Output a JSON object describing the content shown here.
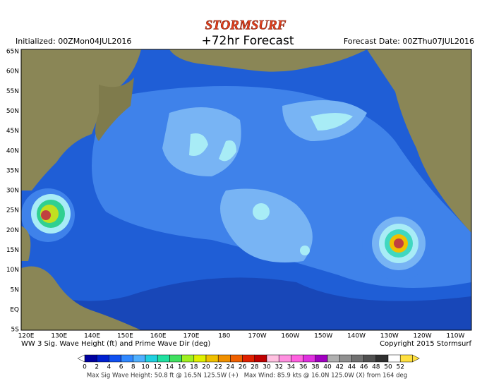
{
  "header": {
    "logo": "STORMSURF",
    "title": "+72hr Forecast",
    "initialized": "Initialized: 00ZMon04JUL2016",
    "forecast_date": "Forecast Date: 00ZThu07JUL2016"
  },
  "map": {
    "lat_labels": [
      "65N",
      "60N",
      "55N",
      "50N",
      "45N",
      "40N",
      "35N",
      "30N",
      "25N",
      "20N",
      "15N",
      "10N",
      "5N",
      "EQ",
      "5S"
    ],
    "lon_labels": [
      "120E",
      "130E",
      "140E",
      "150E",
      "160E",
      "170E",
      "180",
      "170W",
      "160W",
      "150W",
      "140W",
      "130W",
      "120W",
      "110W"
    ]
  },
  "caption": {
    "left": "WW 3 Sig. Wave Height (ft) and Prime Wave Dir (deg)",
    "right": "Copyright 2015 Stormsurf"
  },
  "legend": {
    "labels": [
      "0",
      "2",
      "4",
      "6",
      "8",
      "10",
      "12",
      "14",
      "16",
      "18",
      "20",
      "22",
      "24",
      "26",
      "28",
      "30",
      "32",
      "34",
      "36",
      "38",
      "40",
      "42",
      "44",
      "46",
      "48",
      "50",
      "52"
    ]
  },
  "footer": "Max Sig Wave Height: 50.8 ft @ 16.5N 125.5W (+)   Max Wind: 85.9 kts @ 16.0N 125.0W (X) from 164 deg"
}
